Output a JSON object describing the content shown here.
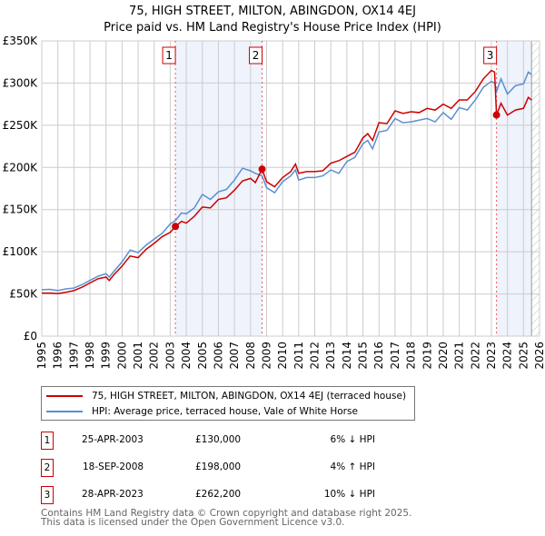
{
  "title": [
    "75, HIGH STREET, MILTON, ABINGDON, OX14 4EJ",
    "Price paid vs. HM Land Registry's House Price Index (HPI)"
  ],
  "chart_data": {
    "type": "line",
    "title": "75, HIGH STREET, MILTON, ABINGDON, OX14 4EJ — Price paid vs. HM Land Registry's House Price Index (HPI)",
    "xlim": [
      1995,
      2026
    ],
    "ylim": [
      0,
      350000
    ],
    "yticks": [
      0,
      50000,
      100000,
      150000,
      200000,
      250000,
      300000,
      350000
    ],
    "ytick_labels": [
      "£0",
      "£50K",
      "£100K",
      "£150K",
      "£200K",
      "£250K",
      "£300K",
      "£350K"
    ],
    "xticks": [
      1995,
      1996,
      1997,
      1998,
      1999,
      2000,
      2001,
      2002,
      2003,
      2004,
      2005,
      2006,
      2007,
      2008,
      2009,
      2010,
      2011,
      2012,
      2013,
      2014,
      2015,
      2016,
      2017,
      2018,
      2019,
      2020,
      2021,
      2022,
      2023,
      2024,
      2025,
      2026
    ],
    "grid": true,
    "series": [
      {
        "name": "75, HIGH STREET, MILTON, ABINGDON, OX14 4EJ (terraced house)",
        "color": "#cc0000",
        "x": [
          1995,
          1995.5,
          1996,
          1996.5,
          1997,
          1997.5,
          1998,
          1998.5,
          1999,
          1999.2,
          1999.5,
          2000,
          2000.5,
          2001,
          2001.5,
          2002,
          2002.5,
          2003,
          2003.32,
          2003.7,
          2004,
          2004.5,
          2005,
          2005.5,
          2006,
          2006.5,
          2007,
          2007.5,
          2008,
          2008.3,
          2008.72,
          2009,
          2009.5,
          2010,
          2010.5,
          2010.8,
          2011,
          2011.5,
          2012,
          2012.5,
          2013,
          2013.5,
          2014,
          2014.5,
          2015,
          2015.3,
          2015.6,
          2016,
          2016.5,
          2017,
          2017.5,
          2018,
          2018.5,
          2019,
          2019.5,
          2020,
          2020.5,
          2021,
          2021.5,
          2022,
          2022.5,
          2023,
          2023.2,
          2023.32,
          2023.6,
          2024,
          2024.5,
          2025,
          2025.3,
          2025.5
        ],
        "y": [
          51000,
          51000,
          50500,
          52000,
          54000,
          58000,
          63000,
          68000,
          70000,
          66000,
          73000,
          83000,
          95000,
          93000,
          103000,
          110000,
          118000,
          123000,
          130000,
          136000,
          134000,
          142000,
          153000,
          152000,
          162000,
          164000,
          173000,
          184000,
          187000,
          182000,
          198000,
          183000,
          177000,
          188000,
          195000,
          204000,
          193000,
          195000,
          195000,
          196000,
          205000,
          208000,
          213000,
          218000,
          235000,
          240000,
          232000,
          253000,
          252000,
          267000,
          264000,
          266000,
          265000,
          270000,
          268000,
          275000,
          270000,
          280000,
          280000,
          290000,
          305000,
          315000,
          313000,
          262200,
          276000,
          262000,
          268000,
          270000,
          283000,
          280000
        ]
      },
      {
        "name": "HPI: Average price, terraced house, Vale of White Horse",
        "color": "#5b8fd0",
        "x": [
          1995,
          1995.5,
          1996,
          1996.5,
          1997,
          1997.5,
          1998,
          1998.5,
          1999,
          1999.2,
          1999.5,
          2000,
          2000.5,
          2001,
          2001.5,
          2002,
          2002.5,
          2003,
          2003.32,
          2003.7,
          2004,
          2004.5,
          2005,
          2005.5,
          2006,
          2006.5,
          2007,
          2007.5,
          2008,
          2008.3,
          2008.72,
          2009,
          2009.5,
          2010,
          2010.5,
          2010.8,
          2011,
          2011.5,
          2012,
          2012.5,
          2013,
          2013.5,
          2014,
          2014.5,
          2015,
          2015.3,
          2015.6,
          2016,
          2016.5,
          2017,
          2017.5,
          2018,
          2018.5,
          2019,
          2019.5,
          2020,
          2020.5,
          2021,
          2021.5,
          2022,
          2022.5,
          2023,
          2023.2,
          2023.32,
          2023.6,
          2024,
          2024.5,
          2025,
          2025.3,
          2025.5
        ],
        "y": [
          55000,
          55500,
          54000,
          56000,
          57000,
          61000,
          66000,
          71000,
          74000,
          70000,
          77000,
          88000,
          102000,
          99000,
          108000,
          115000,
          122000,
          133000,
          137000,
          146000,
          145000,
          152000,
          168000,
          162000,
          171000,
          174000,
          185000,
          199000,
          196000,
          193000,
          190000,
          176000,
          170000,
          183000,
          190000,
          197000,
          185000,
          188000,
          188000,
          190000,
          197000,
          193000,
          207000,
          212000,
          228000,
          232000,
          222000,
          242000,
          244000,
          258000,
          253000,
          254000,
          256000,
          258000,
          254000,
          265000,
          257000,
          271000,
          268000,
          280000,
          295000,
          302000,
          300000,
          290000,
          305000,
          287000,
          297000,
          299000,
          313000,
          310000
        ]
      }
    ],
    "sales": [
      {
        "label": "1",
        "x": 2003.32,
        "price": 130000,
        "date": "25-APR-2003",
        "price_text": "£130,000",
        "hpi_text": "6% ↓ HPI"
      },
      {
        "label": "2",
        "x": 2008.72,
        "price": 198000,
        "date": "18-SEP-2008",
        "price_text": "£198,000",
        "hpi_text": "4% ↑ HPI"
      },
      {
        "label": "3",
        "x": 2023.32,
        "price": 262200,
        "date": "28-APR-2023",
        "price_text": "£262,200",
        "hpi_text": "10% ↓ HPI"
      }
    ],
    "shaded_ranges": [
      [
        2003.32,
        2008.72
      ],
      [
        2023.32,
        2025.5
      ]
    ],
    "forecast_hatch_from": 2025.5
  },
  "legend": [
    "75, HIGH STREET, MILTON, ABINGDON, OX14 4EJ (terraced house)",
    "HPI: Average price, terraced house, Vale of White Horse"
  ],
  "footer": [
    "Contains HM Land Registry data © Crown copyright and database right 2025.",
    "This data is licensed under the Open Government Licence v3.0."
  ]
}
